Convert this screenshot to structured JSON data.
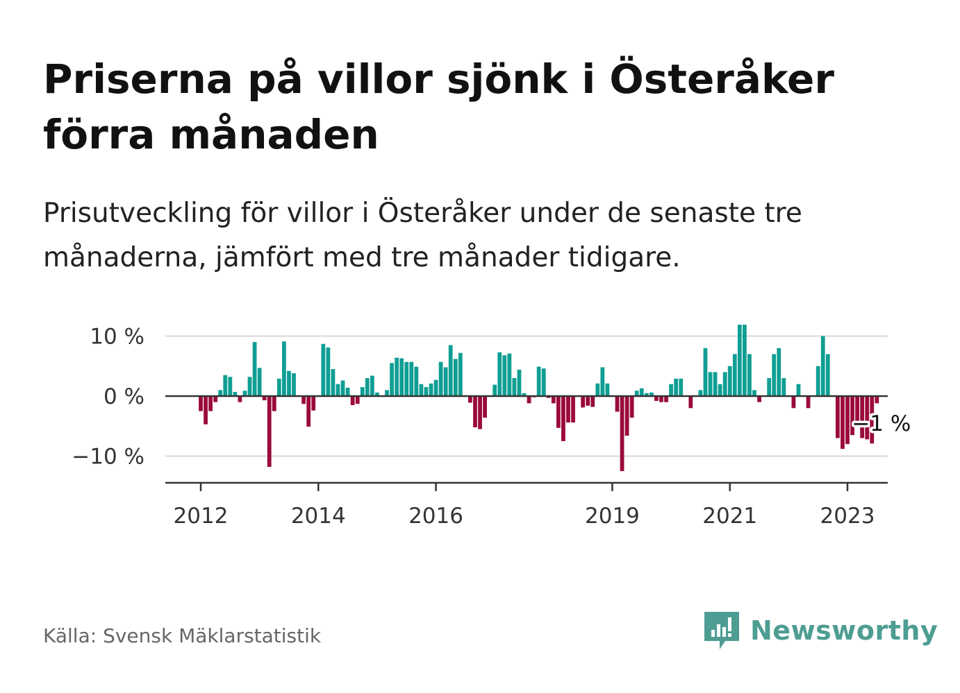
{
  "title": "Priserna på villor sjönk i Österåker förra månaden",
  "subtitle": "Prisutveckling för villor i Österåker under de senaste tre månaderna, jämfört med tre månader tidigare.",
  "source": "Källa: Svensk Mäklarstatistik",
  "logo": {
    "text": "Newsworthy",
    "icon": "newsworthy-logo-icon",
    "color": "#4e9d92"
  },
  "chart_data": {
    "type": "bar",
    "title": "Priserna på villor sjönk i Österåker förra månaden",
    "subtitle": "Prisutveckling för villor i Österåker under de senaste tre månaderna, jämfört med tre månader tidigare.",
    "y_unit": "%",
    "ylim": [
      -12.5,
      12.5
    ],
    "y_ticks": [
      10,
      0,
      -10
    ],
    "y_tick_labels": [
      "10 %",
      "0 %",
      "−10 %"
    ],
    "x_ticks": [
      2012,
      2014,
      2016,
      2019,
      2021,
      2023
    ],
    "x_tick_labels": [
      "2012",
      "2014",
      "2016",
      "2019",
      "2021",
      "2023"
    ],
    "grid": "horizontal",
    "colors": {
      "positive": "#0f9e93",
      "negative": "#9b0a3c"
    },
    "start": "2012-01",
    "frequency": "monthly",
    "annotation": {
      "text": "−1 %",
      "target": "last"
    },
    "values": [
      -2.5,
      -4.7,
      -2.5,
      -1.0,
      1.0,
      3.5,
      3.2,
      0.7,
      -1.0,
      0.9,
      3.2,
      9.0,
      4.7,
      -0.7,
      -11.8,
      -2.5,
      2.9,
      9.1,
      4.2,
      3.8,
      0,
      -1.3,
      -5.1,
      -2.4,
      0,
      8.7,
      8.1,
      4.5,
      2.0,
      2.6,
      1.4,
      -1.5,
      -1.3,
      1.5,
      3.0,
      3.4,
      0.6,
      0,
      1.0,
      5.5,
      6.4,
      6.3,
      5.7,
      5.7,
      4.9,
      2.0,
      1.5,
      2.1,
      2.7,
      5.7,
      4.8,
      8.5,
      6.2,
      7.2,
      0,
      -1.1,
      -5.2,
      -5.5,
      -3.6,
      0,
      1.9,
      7.3,
      6.8,
      7.1,
      3.0,
      4.4,
      0.5,
      -1.2,
      -0.2,
      4.9,
      4.6,
      -0.3,
      -1.2,
      -5.3,
      -7.5,
      -4.4,
      -4.4,
      0,
      -1.9,
      -1.6,
      -1.8,
      2.1,
      4.8,
      2.1,
      0,
      -2.6,
      -12.5,
      -6.6,
      -3.6,
      0.9,
      1.3,
      0.5,
      0.6,
      -0.8,
      -1.0,
      -1.0,
      2.0,
      2.9,
      2.9,
      0,
      -2.0,
      0,
      1.0,
      8.0,
      4.0,
      4.0,
      2.0,
      4.0,
      5.0,
      7.0,
      11.9,
      11.9,
      7.0,
      1.0,
      -1.0,
      0,
      3.0,
      7.0,
      8.0,
      3.0,
      0,
      -2.0,
      2.0,
      0,
      -2.0,
      0,
      5.0,
      10.0,
      7.0,
      0,
      -7.0,
      -8.8,
      -8.0,
      -6.5,
      -4.5,
      -7.0,
      -7.2,
      -7.9,
      -1.2
    ]
  }
}
